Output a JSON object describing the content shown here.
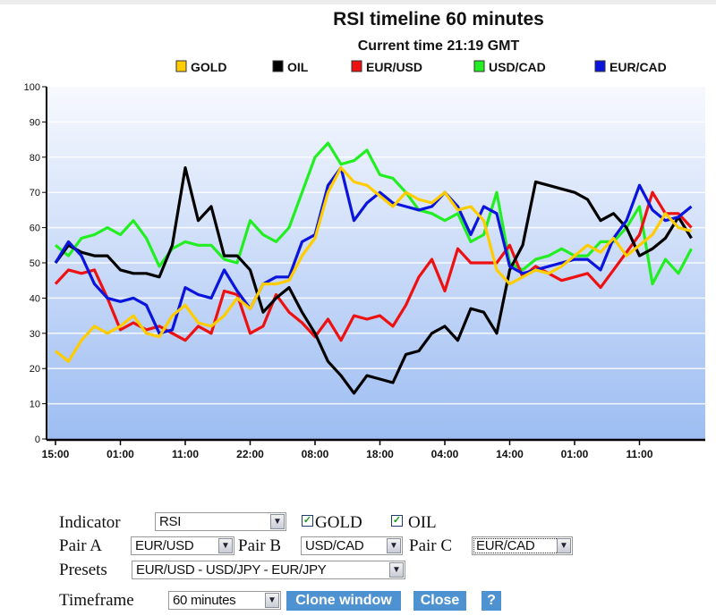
{
  "chart_data": {
    "type": "line",
    "title": "RSI timeline 60 minutes",
    "subtitle": "Current time 21:19 GMT",
    "xlabel": "",
    "ylabel": "",
    "ylim": [
      0,
      100
    ],
    "yticks": [
      0,
      10,
      20,
      30,
      40,
      50,
      60,
      70,
      80,
      90,
      100
    ],
    "grid": true,
    "legend_position": "top",
    "x_hours": [
      0,
      2,
      4,
      6,
      8,
      10,
      12,
      14,
      16,
      18,
      20,
      22,
      24,
      26,
      28,
      30,
      32,
      34,
      36,
      38,
      40,
      42,
      44,
      46,
      48,
      50,
      52,
      54,
      56,
      58,
      60,
      62,
      64,
      66,
      68,
      70,
      72,
      74,
      76,
      78,
      80,
      82,
      84,
      86,
      88,
      90,
      92,
      94,
      96,
      98
    ],
    "xticks": [
      {
        "hour": 0,
        "label": "15:00"
      },
      {
        "hour": 10,
        "label": "01:00"
      },
      {
        "hour": 20,
        "label": "11:00"
      },
      {
        "hour": 30,
        "label": "22:00"
      },
      {
        "hour": 40,
        "label": "08:00"
      },
      {
        "hour": 50,
        "label": "18:00"
      },
      {
        "hour": 60,
        "label": "04:00"
      },
      {
        "hour": 70,
        "label": "14:00"
      },
      {
        "hour": 80,
        "label": "01:00"
      },
      {
        "hour": 90,
        "label": "11:00"
      }
    ],
    "series": [
      {
        "name": "GOLD",
        "color": "#ffcc00",
        "values": [
          25,
          22,
          28,
          32,
          30,
          32,
          35,
          30,
          29,
          35,
          38,
          33,
          32,
          35,
          40,
          37,
          44,
          44,
          45,
          52,
          57,
          70,
          77,
          73,
          72,
          69,
          66,
          70,
          68,
          67,
          70,
          65,
          66,
          62,
          48,
          44,
          46,
          48,
          47,
          49,
          52,
          55,
          53,
          57,
          52,
          55,
          58,
          64,
          60,
          59
        ]
      },
      {
        "name": "OIL",
        "color": "#000000",
        "values": [
          50,
          55,
          53,
          52,
          52,
          48,
          47,
          47,
          46,
          55,
          77,
          62,
          66,
          52,
          52,
          48,
          36,
          40,
          43,
          36,
          30,
          22,
          18,
          13,
          18,
          17,
          16,
          24,
          25,
          30,
          32,
          28,
          37,
          36,
          30,
          48,
          55,
          73,
          72,
          71,
          70,
          68,
          62,
          64,
          60,
          52,
          54,
          57,
          63,
          57
        ]
      },
      {
        "name": "EUR/USD",
        "color": "#ee1111",
        "values": [
          44,
          48,
          47,
          48,
          40,
          31,
          33,
          31,
          32,
          30,
          28,
          32,
          30,
          42,
          41,
          30,
          32,
          41,
          36,
          33,
          29,
          34,
          28,
          35,
          34,
          35,
          32,
          38,
          46,
          51,
          42,
          54,
          50,
          50,
          50,
          55,
          46,
          49,
          47,
          45,
          46,
          47,
          43,
          48,
          53,
          58,
          70,
          64,
          64,
          60
        ]
      },
      {
        "name": "USD/CAD",
        "color": "#22ee22",
        "values": [
          55,
          52,
          57,
          58,
          60,
          58,
          62,
          57,
          49,
          54,
          56,
          55,
          55,
          51,
          50,
          62,
          58,
          56,
          60,
          70,
          80,
          84,
          78,
          79,
          82,
          75,
          74,
          70,
          65,
          64,
          62,
          64,
          56,
          58,
          70,
          50,
          48,
          51,
          52,
          54,
          52,
          52,
          56,
          56,
          60,
          66,
          44,
          51,
          47,
          54
        ]
      },
      {
        "name": "EUR/CAD",
        "color": "#0a14dd",
        "values": [
          50,
          56,
          52,
          44,
          40,
          39,
          40,
          38,
          30,
          31,
          43,
          41,
          40,
          48,
          42,
          37,
          44,
          46,
          46,
          56,
          58,
          72,
          77,
          62,
          67,
          70,
          67,
          66,
          65,
          66,
          70,
          66,
          58,
          66,
          64,
          49,
          47,
          48,
          49,
          50,
          51,
          51,
          48,
          57,
          62,
          72,
          65,
          62,
          63,
          66
        ]
      }
    ]
  },
  "controls": {
    "indicator_label": "Indicator",
    "indicator_value": "RSI",
    "gold_label": "GOLD",
    "gold_checked": true,
    "oil_label": "OIL",
    "oil_checked": true,
    "pair_a_label": "Pair A",
    "pair_a_value": "EUR/USD",
    "pair_b_label": "Pair B",
    "pair_b_value": "USD/CAD",
    "pair_c_label": "Pair C",
    "pair_c_value": "EUR/CAD",
    "presets_label": "Presets",
    "presets_value": "EUR/USD - USD/JPY - EUR/JPY",
    "timeframe_label": "Timeframe",
    "timeframe_value": "60 minutes",
    "clone_button": "Clone window",
    "close_button": "Close",
    "help_button": "?",
    "check_glyph": "✓",
    "dropdown_glyph": "▼"
  }
}
